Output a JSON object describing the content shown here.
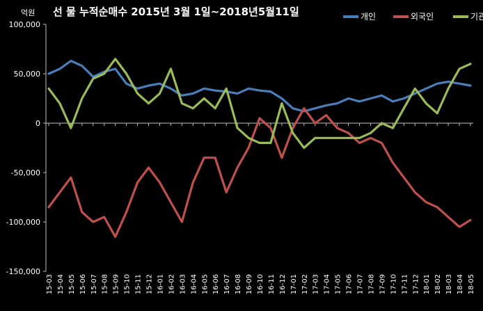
{
  "chart_data": {
    "type": "line",
    "title": "선 물 누적순매수 2015년 3월 1일~2018년5월11일",
    "unit_label": "억원",
    "ylim": [
      -150000,
      100000
    ],
    "y_ticks": [
      {
        "value": 100000,
        "label": "100,000"
      },
      {
        "value": 50000,
        "label": "50,000"
      },
      {
        "value": 0,
        "label": "0"
      },
      {
        "value": -50000,
        "label": "-50,000"
      },
      {
        "value": -100000,
        "label": "-100,000"
      },
      {
        "value": -150000,
        "label": "-150,000"
      }
    ],
    "categories": [
      "15-03",
      "15-04",
      "15-05",
      "15-06",
      "15-07",
      "15-08",
      "15-09",
      "15-10",
      "15-11",
      "15-12",
      "16-01",
      "16-02",
      "16-03",
      "16-04",
      "16-05",
      "16-06",
      "16-07",
      "16-08",
      "16-09",
      "16-10",
      "16-11",
      "16-12",
      "17-01",
      "17-02",
      "17-03",
      "17-04",
      "17-05",
      "17-06",
      "17-07",
      "17-08",
      "17-09",
      "17-10",
      "17-11",
      "17-12",
      "18-01",
      "18-02",
      "18-03",
      "18-04",
      "18-05"
    ],
    "grid": false,
    "legend_position": "top-right",
    "series": [
      {
        "name": "개인",
        "color": "#4a7ebb",
        "values": [
          50000,
          55000,
          63000,
          58000,
          47000,
          52000,
          55000,
          40000,
          35000,
          38000,
          40000,
          35000,
          28000,
          30000,
          35000,
          33000,
          32000,
          30000,
          35000,
          33000,
          32000,
          25000,
          15000,
          12000,
          15000,
          18000,
          20000,
          25000,
          22000,
          25000,
          28000,
          22000,
          25000,
          30000,
          35000,
          40000,
          42000,
          40000,
          38000
        ]
      },
      {
        "name": "외국인",
        "color": "#c0504d",
        "values": [
          -85000,
          -70000,
          -55000,
          -90000,
          -100000,
          -95000,
          -115000,
          -90000,
          -60000,
          -45000,
          -60000,
          -80000,
          -100000,
          -60000,
          -35000,
          -35000,
          -70000,
          -45000,
          -25000,
          5000,
          -5000,
          -35000,
          -5000,
          15000,
          0,
          8000,
          -5000,
          -10000,
          -20000,
          -15000,
          -20000,
          -40000,
          -55000,
          -70000,
          -80000,
          -85000,
          -95000,
          -105000,
          -98000
        ]
      },
      {
        "name": "기관",
        "color": "#9bbb59",
        "values": [
          35000,
          20000,
          -5000,
          25000,
          45000,
          50000,
          65000,
          50000,
          30000,
          20000,
          30000,
          55000,
          20000,
          15000,
          25000,
          15000,
          35000,
          -5000,
          -15000,
          -20000,
          -20000,
          20000,
          -10000,
          -25000,
          -15000,
          -15000,
          -15000,
          -15000,
          -15000,
          -10000,
          0,
          -5000,
          15000,
          35000,
          20000,
          10000,
          35000,
          55000,
          60000
        ]
      }
    ]
  }
}
